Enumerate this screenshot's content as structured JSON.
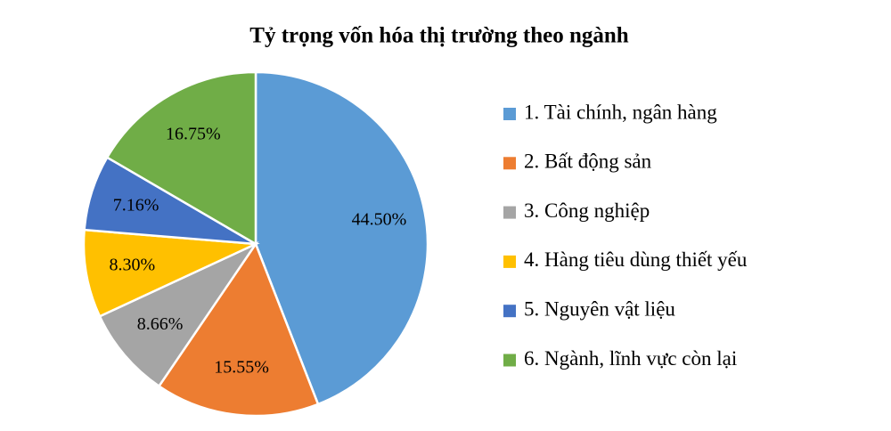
{
  "chart_data": {
    "type": "pie",
    "title": "Tỷ trọng vốn hóa thị trường theo ngành",
    "categories": [
      "1. Tài chính, ngân hàng",
      "2. Bất động sản",
      "3. Công nghiệp",
      "4. Hàng tiêu dùng thiết yếu",
      "5. Nguyên vật liệu",
      "6. Ngành, lĩnh vực còn lại"
    ],
    "values": [
      44.5,
      15.55,
      8.66,
      8.3,
      7.16,
      16.75
    ],
    "value_labels": [
      "44.50%",
      "15.55%",
      "8.66%",
      "8.30%",
      "7.16%",
      "16.75%"
    ],
    "colors": [
      "#5b9bd5",
      "#ed7d31",
      "#a5a5a5",
      "#ffc000",
      "#4472c4",
      "#70ad47"
    ],
    "legend": "right"
  }
}
